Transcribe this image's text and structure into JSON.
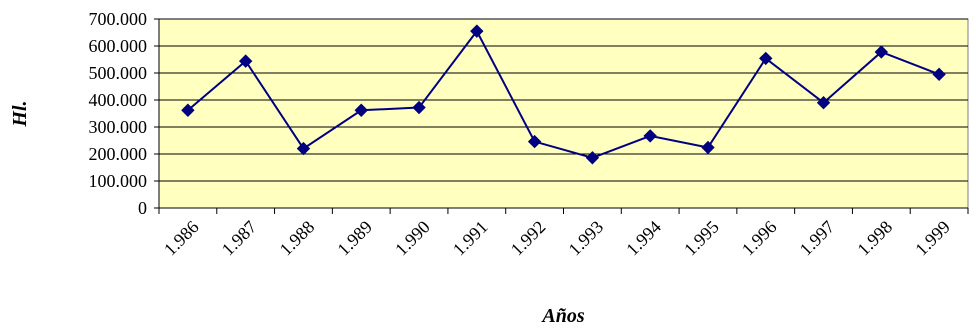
{
  "chart_data": {
    "type": "line",
    "categories": [
      "1.986",
      "1.987",
      "1.988",
      "1.989",
      "1.990",
      "1.991",
      "1.992",
      "1.993",
      "1.994",
      "1.995",
      "1.996",
      "1.997",
      "1.998",
      "1.999"
    ],
    "series": [
      {
        "values": [
          362000,
          544000,
          220000,
          362000,
          372000,
          655000,
          246000,
          186000,
          267000,
          224000,
          554000,
          390000,
          578000,
          495000
        ]
      }
    ],
    "ylabel": "Hl.",
    "xlabel": "Años",
    "ylim": [
      0,
      700000
    ],
    "yticks": [
      0,
      100000,
      200000,
      300000,
      400000,
      500000,
      600000,
      700000
    ],
    "ytick_labels": [
      "0",
      "100.000",
      "200.000",
      "300.000",
      "400.000",
      "500.000",
      "600.000",
      "700.000"
    ],
    "grid": true,
    "legend": "none",
    "colors": {
      "plot_background": "#FFFFC0",
      "line": "#000080",
      "marker": "#000080",
      "gridline": "#000000"
    }
  }
}
